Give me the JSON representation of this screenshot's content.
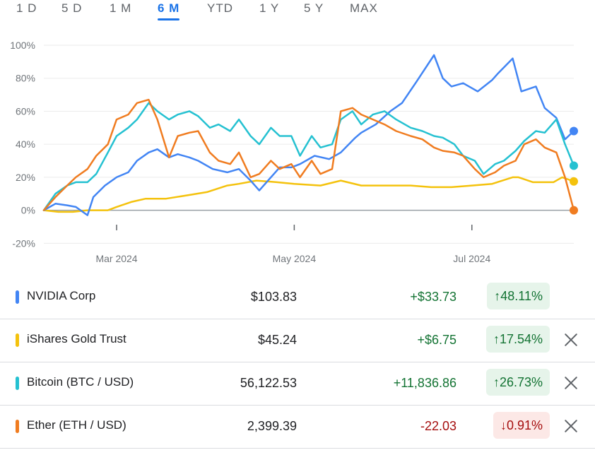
{
  "tabs": [
    {
      "label": "1 D",
      "active": false
    },
    {
      "label": "5 D",
      "active": false
    },
    {
      "label": "1 M",
      "active": false
    },
    {
      "label": "6 M",
      "active": true
    },
    {
      "label": "YTD",
      "active": false
    },
    {
      "label": "1 Y",
      "active": false
    },
    {
      "label": "5 Y",
      "active": false
    },
    {
      "label": "MAX",
      "active": false
    }
  ],
  "colors": {
    "nvidia": "#4285f4",
    "gold": "#f4c20d",
    "bitcoin": "#25c1d1",
    "ether": "#f07c20",
    "up": "#137333",
    "down": "#a50e0e",
    "accent": "#1a73e8"
  },
  "rows": [
    {
      "name": "NVIDIA Corp",
      "price": "$103.83",
      "change": "+$33.73",
      "pct": "48.11%",
      "direction": "up",
      "color": "#4285f4",
      "removable": false,
      "arrow_icon": "arrow-up-icon"
    },
    {
      "name": "iShares Gold Trust",
      "price": "$45.24",
      "change": "+$6.75",
      "pct": "17.54%",
      "direction": "up",
      "color": "#f4c20d",
      "removable": true,
      "arrow_icon": "arrow-up-icon"
    },
    {
      "name": "Bitcoin (BTC / USD)",
      "price": "56,122.53",
      "change": "+11,836.86",
      "pct": "26.73%",
      "direction": "up",
      "color": "#25c1d1",
      "removable": true,
      "arrow_icon": "arrow-up-icon"
    },
    {
      "name": "Ether (ETH / USD)",
      "price": "2,399.39",
      "change": "-22.03",
      "pct": "0.91%",
      "direction": "down",
      "color": "#f07c20",
      "removable": true,
      "arrow_icon": "arrow-down-icon"
    }
  ],
  "chart_data": {
    "type": "line",
    "x_range": [
      "2024-02-05",
      "2024-08-05"
    ],
    "xticks": [
      {
        "label": "Mar 2024",
        "date": "2024-03-01"
      },
      {
        "label": "May 2024",
        "date": "2024-05-01"
      },
      {
        "label": "Jul 2024",
        "date": "2024-07-01"
      }
    ],
    "yticks": [
      {
        "label": "100%",
        "value": 100
      },
      {
        "label": "80%",
        "value": 80
      },
      {
        "label": "60%",
        "value": 60
      },
      {
        "label": "40%",
        "value": 40
      },
      {
        "label": "20%",
        "value": 20
      },
      {
        "label": "0%",
        "value": 0
      },
      {
        "label": "-20%",
        "value": -20
      }
    ],
    "ylim": [
      -20,
      100
    ],
    "series": [
      {
        "name": "iShares Gold Trust",
        "color": "#f4c20d",
        "x": [
          "2024-02-05",
          "2024-02-10",
          "2024-02-15",
          "2024-02-20",
          "2024-02-27",
          "2024-03-01",
          "2024-03-06",
          "2024-03-11",
          "2024-03-18",
          "2024-03-25",
          "2024-04-01",
          "2024-04-08",
          "2024-04-12",
          "2024-04-18",
          "2024-04-25",
          "2024-05-01",
          "2024-05-10",
          "2024-05-17",
          "2024-05-24",
          "2024-06-01",
          "2024-06-10",
          "2024-06-17",
          "2024-06-24",
          "2024-07-01",
          "2024-07-08",
          "2024-07-15",
          "2024-07-17",
          "2024-07-22",
          "2024-07-29",
          "2024-08-01",
          "2024-08-05"
        ],
        "values": [
          0,
          -1,
          -1,
          0,
          0,
          2,
          5,
          7,
          7,
          9,
          11,
          15,
          16,
          18,
          17,
          16,
          15,
          18,
          15,
          15,
          15,
          14,
          14,
          15,
          16,
          20,
          20,
          17,
          17,
          20,
          17.5
        ]
      },
      {
        "name": "NVIDIA Corp",
        "color": "#4285f4",
        "x": [
          "2024-02-05",
          "2024-02-09",
          "2024-02-13",
          "2024-02-16",
          "2024-02-20",
          "2024-02-22",
          "2024-02-26",
          "2024-03-01",
          "2024-03-05",
          "2024-03-08",
          "2024-03-12",
          "2024-03-15",
          "2024-03-19",
          "2024-03-22",
          "2024-03-26",
          "2024-03-29",
          "2024-04-03",
          "2024-04-08",
          "2024-04-12",
          "2024-04-16",
          "2024-04-19",
          "2024-04-23",
          "2024-04-26",
          "2024-04-30",
          "2024-05-03",
          "2024-05-08",
          "2024-05-13",
          "2024-05-17",
          "2024-05-22",
          "2024-05-24",
          "2024-05-29",
          "2024-06-03",
          "2024-06-07",
          "2024-06-12",
          "2024-06-18",
          "2024-06-21",
          "2024-06-24",
          "2024-06-28",
          "2024-07-03",
          "2024-07-08",
          "2024-07-10",
          "2024-07-15",
          "2024-07-18",
          "2024-07-23",
          "2024-07-26",
          "2024-07-30",
          "2024-08-02",
          "2024-08-05"
        ],
        "values": [
          0,
          4,
          3,
          2,
          -3,
          8,
          15,
          20,
          23,
          30,
          35,
          37,
          32,
          34,
          32,
          30,
          25,
          23,
          25,
          18,
          12,
          20,
          26,
          26,
          28,
          33,
          31,
          35,
          44,
          47,
          52,
          60,
          65,
          78,
          94,
          80,
          75,
          77,
          72,
          79,
          83,
          92,
          72,
          75,
          62,
          56,
          43,
          48
        ]
      },
      {
        "name": "Bitcoin (BTC / USD)",
        "color": "#25c1d1",
        "x": [
          "2024-02-05",
          "2024-02-09",
          "2024-02-13",
          "2024-02-16",
          "2024-02-20",
          "2024-02-23",
          "2024-02-27",
          "2024-03-01",
          "2024-03-05",
          "2024-03-08",
          "2024-03-12",
          "2024-03-15",
          "2024-03-19",
          "2024-03-22",
          "2024-03-26",
          "2024-03-29",
          "2024-04-02",
          "2024-04-05",
          "2024-04-09",
          "2024-04-12",
          "2024-04-16",
          "2024-04-19",
          "2024-04-23",
          "2024-04-26",
          "2024-04-30",
          "2024-05-03",
          "2024-05-07",
          "2024-05-10",
          "2024-05-14",
          "2024-05-17",
          "2024-05-21",
          "2024-05-24",
          "2024-05-28",
          "2024-06-01",
          "2024-06-05",
          "2024-06-10",
          "2024-06-14",
          "2024-06-18",
          "2024-06-21",
          "2024-06-25",
          "2024-06-28",
          "2024-07-02",
          "2024-07-05",
          "2024-07-09",
          "2024-07-12",
          "2024-07-16",
          "2024-07-19",
          "2024-07-23",
          "2024-07-26",
          "2024-07-30",
          "2024-08-02",
          "2024-08-05"
        ],
        "values": [
          0,
          10,
          15,
          17,
          17,
          22,
          35,
          45,
          50,
          55,
          65,
          60,
          55,
          58,
          60,
          57,
          50,
          52,
          48,
          55,
          45,
          40,
          50,
          45,
          45,
          33,
          45,
          38,
          40,
          55,
          60,
          52,
          58,
          60,
          55,
          50,
          48,
          45,
          44,
          40,
          33,
          30,
          22,
          28,
          30,
          36,
          42,
          48,
          47,
          55,
          40,
          27
        ]
      },
      {
        "name": "Ether (ETH / USD)",
        "color": "#f07c20",
        "x": [
          "2024-02-05",
          "2024-02-09",
          "2024-02-13",
          "2024-02-16",
          "2024-02-20",
          "2024-02-23",
          "2024-02-27",
          "2024-03-01",
          "2024-03-05",
          "2024-03-08",
          "2024-03-12",
          "2024-03-15",
          "2024-03-19",
          "2024-03-22",
          "2024-03-26",
          "2024-03-29",
          "2024-04-02",
          "2024-04-05",
          "2024-04-09",
          "2024-04-12",
          "2024-04-16",
          "2024-04-19",
          "2024-04-23",
          "2024-04-26",
          "2024-04-30",
          "2024-05-03",
          "2024-05-07",
          "2024-05-10",
          "2024-05-14",
          "2024-05-17",
          "2024-05-21",
          "2024-05-24",
          "2024-05-28",
          "2024-06-01",
          "2024-06-05",
          "2024-06-10",
          "2024-06-14",
          "2024-06-18",
          "2024-06-21",
          "2024-06-25",
          "2024-06-28",
          "2024-07-02",
          "2024-07-05",
          "2024-07-09",
          "2024-07-12",
          "2024-07-16",
          "2024-07-19",
          "2024-07-23",
          "2024-07-26",
          "2024-07-30",
          "2024-08-02",
          "2024-08-05"
        ],
        "values": [
          0,
          8,
          15,
          20,
          25,
          33,
          40,
          55,
          58,
          65,
          67,
          55,
          32,
          45,
          47,
          48,
          35,
          30,
          28,
          35,
          20,
          22,
          30,
          25,
          28,
          20,
          30,
          22,
          25,
          60,
          62,
          58,
          55,
          52,
          48,
          45,
          43,
          38,
          36,
          35,
          33,
          25,
          20,
          23,
          27,
          30,
          40,
          43,
          38,
          35,
          20,
          0
        ]
      }
    ]
  }
}
